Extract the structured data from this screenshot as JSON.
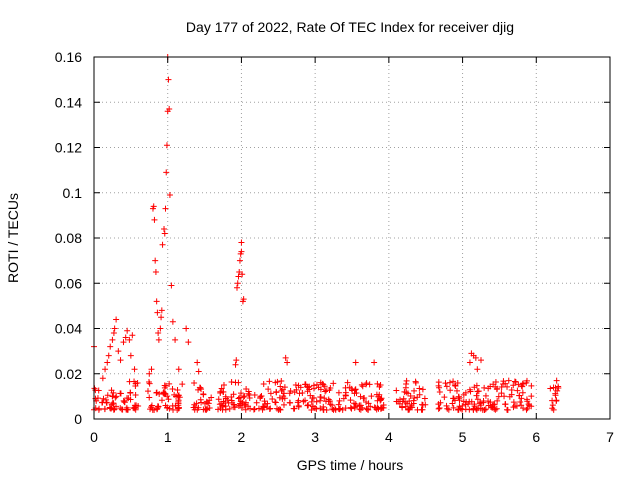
{
  "chart_data": {
    "type": "scatter",
    "title": "Day 177 of 2022, Rate Of TEC Index for receiver djig",
    "xlabel": "GPS time / hours",
    "ylabel": "ROTI / TECUs",
    "xlim": [
      0,
      7
    ],
    "ylim": [
      0,
      0.16
    ],
    "xticks": [
      "0",
      "1",
      "2",
      "3",
      "4",
      "5",
      "6",
      "7"
    ],
    "yticks": [
      "0",
      "0.02",
      "0.04",
      "0.06",
      "0.08",
      "0.1",
      "0.12",
      "0.14",
      "0.16"
    ],
    "grid": true,
    "marker": "+",
    "color": "#ff0000",
    "series": [
      {
        "name": "ROTI",
        "baseline_segments": [
          [
            0.0,
            0.07
          ],
          [
            0.1,
            0.6
          ],
          [
            0.72,
            1.2
          ],
          [
            1.35,
            1.6
          ],
          [
            1.68,
            2.6
          ],
          [
            2.65,
            3.95
          ],
          [
            4.1,
            4.5
          ],
          [
            4.65,
            5.95
          ],
          [
            6.18,
            6.32
          ]
        ],
        "x": [
          0.0,
          0.02,
          0.03,
          0.12,
          0.15,
          0.18,
          0.2,
          0.22,
          0.25,
          0.27,
          0.28,
          0.3,
          0.33,
          0.36,
          0.4,
          0.43,
          0.45,
          0.48,
          0.5,
          0.52,
          0.55,
          0.8,
          0.81,
          0.82,
          0.83,
          0.84,
          0.85,
          0.86,
          0.87,
          0.88,
          0.9,
          0.91,
          0.92,
          0.93,
          0.95,
          0.96,
          0.97,
          0.98,
          0.99,
          1.0,
          1.0,
          1.01,
          1.02,
          1.03,
          1.05,
          1.07,
          1.1,
          1.15,
          1.25,
          1.28,
          1.94,
          1.95,
          1.96,
          1.97,
          1.98,
          1.99,
          2.0,
          2.0,
          2.01,
          2.02,
          2.03,
          1.92,
          1.93,
          2.6,
          2.62,
          5.1,
          5.12,
          5.15,
          5.18,
          5.2,
          5.25,
          3.55,
          3.8,
          0.75,
          0.78,
          1.4,
          1.42
        ],
        "y": [
          0.032,
          0.009,
          0.008,
          0.018,
          0.022,
          0.025,
          0.028,
          0.032,
          0.035,
          0.038,
          0.04,
          0.044,
          0.03,
          0.026,
          0.034,
          0.036,
          0.039,
          0.035,
          0.028,
          0.037,
          0.022,
          0.093,
          0.094,
          0.088,
          0.07,
          0.065,
          0.052,
          0.047,
          0.038,
          0.035,
          0.04,
          0.045,
          0.048,
          0.077,
          0.084,
          0.082,
          0.093,
          0.109,
          0.121,
          0.136,
          0.16,
          0.15,
          0.137,
          0.099,
          0.059,
          0.043,
          0.035,
          0.022,
          0.04,
          0.034,
          0.058,
          0.06,
          0.063,
          0.065,
          0.07,
          0.073,
          0.074,
          0.078,
          0.064,
          0.052,
          0.053,
          0.024,
          0.026,
          0.027,
          0.025,
          0.025,
          0.029,
          0.028,
          0.027,
          0.022,
          0.026,
          0.025,
          0.025,
          0.02,
          0.022,
          0.025,
          0.021
        ]
      }
    ]
  }
}
